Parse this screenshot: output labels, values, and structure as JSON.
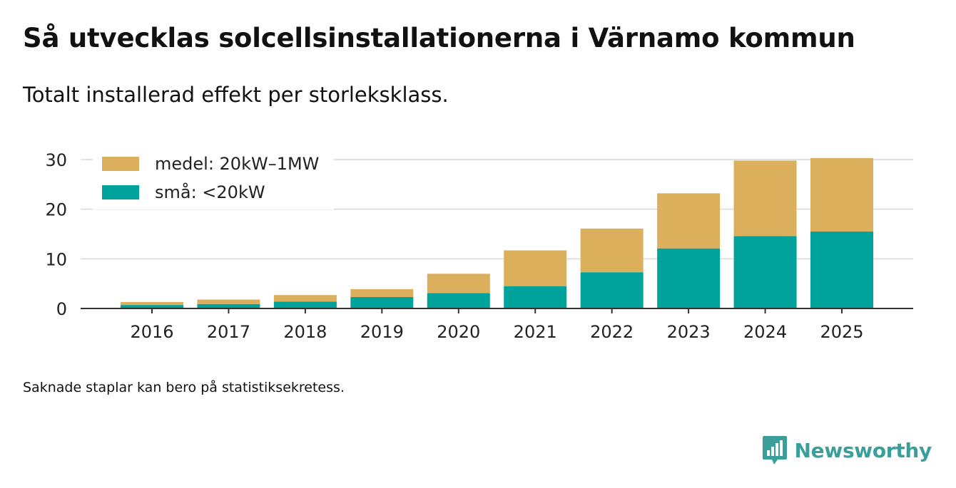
{
  "header": {
    "title": "Så utvecklas solcellsinstallationerna i Värnamo kommun",
    "subtitle": "Totalt installerad effekt per storleksklass."
  },
  "footer": {
    "note": "Saknade staplar kan bero på statistiksekretess.",
    "brand": "Newsworthy"
  },
  "colors": {
    "small": "#00a39c",
    "medium": "#dbaf5c",
    "grid": "#d9d9d9",
    "axis": "#333333",
    "brand": "#3a9e9b"
  },
  "chart_data": {
    "type": "bar",
    "stacked": true,
    "title": "Så utvecklas solcellsinstallationerna i Värnamo kommun",
    "subtitle": "Totalt installerad effekt per storleksklass.",
    "xlabel": "",
    "ylabel": "",
    "ylim": [
      0,
      30
    ],
    "yticks": [
      0,
      10,
      20,
      30
    ],
    "grid": true,
    "legend_position": "top-left",
    "categories": [
      "2016",
      "2017",
      "2018",
      "2019",
      "2020",
      "2021",
      "2022",
      "2023",
      "2024",
      "2025"
    ],
    "series": [
      {
        "name": "små: <20kW",
        "color": "#00a39c",
        "values": [
          0.7,
          0.9,
          1.4,
          2.3,
          3.1,
          4.5,
          7.3,
          12.1,
          14.6,
          15.5
        ]
      },
      {
        "name": "medel: 20kW–1MW",
        "color": "#dbaf5c",
        "values": [
          0.6,
          0.9,
          1.3,
          1.6,
          3.9,
          7.2,
          8.8,
          11.1,
          15.2,
          14.8
        ]
      }
    ]
  }
}
